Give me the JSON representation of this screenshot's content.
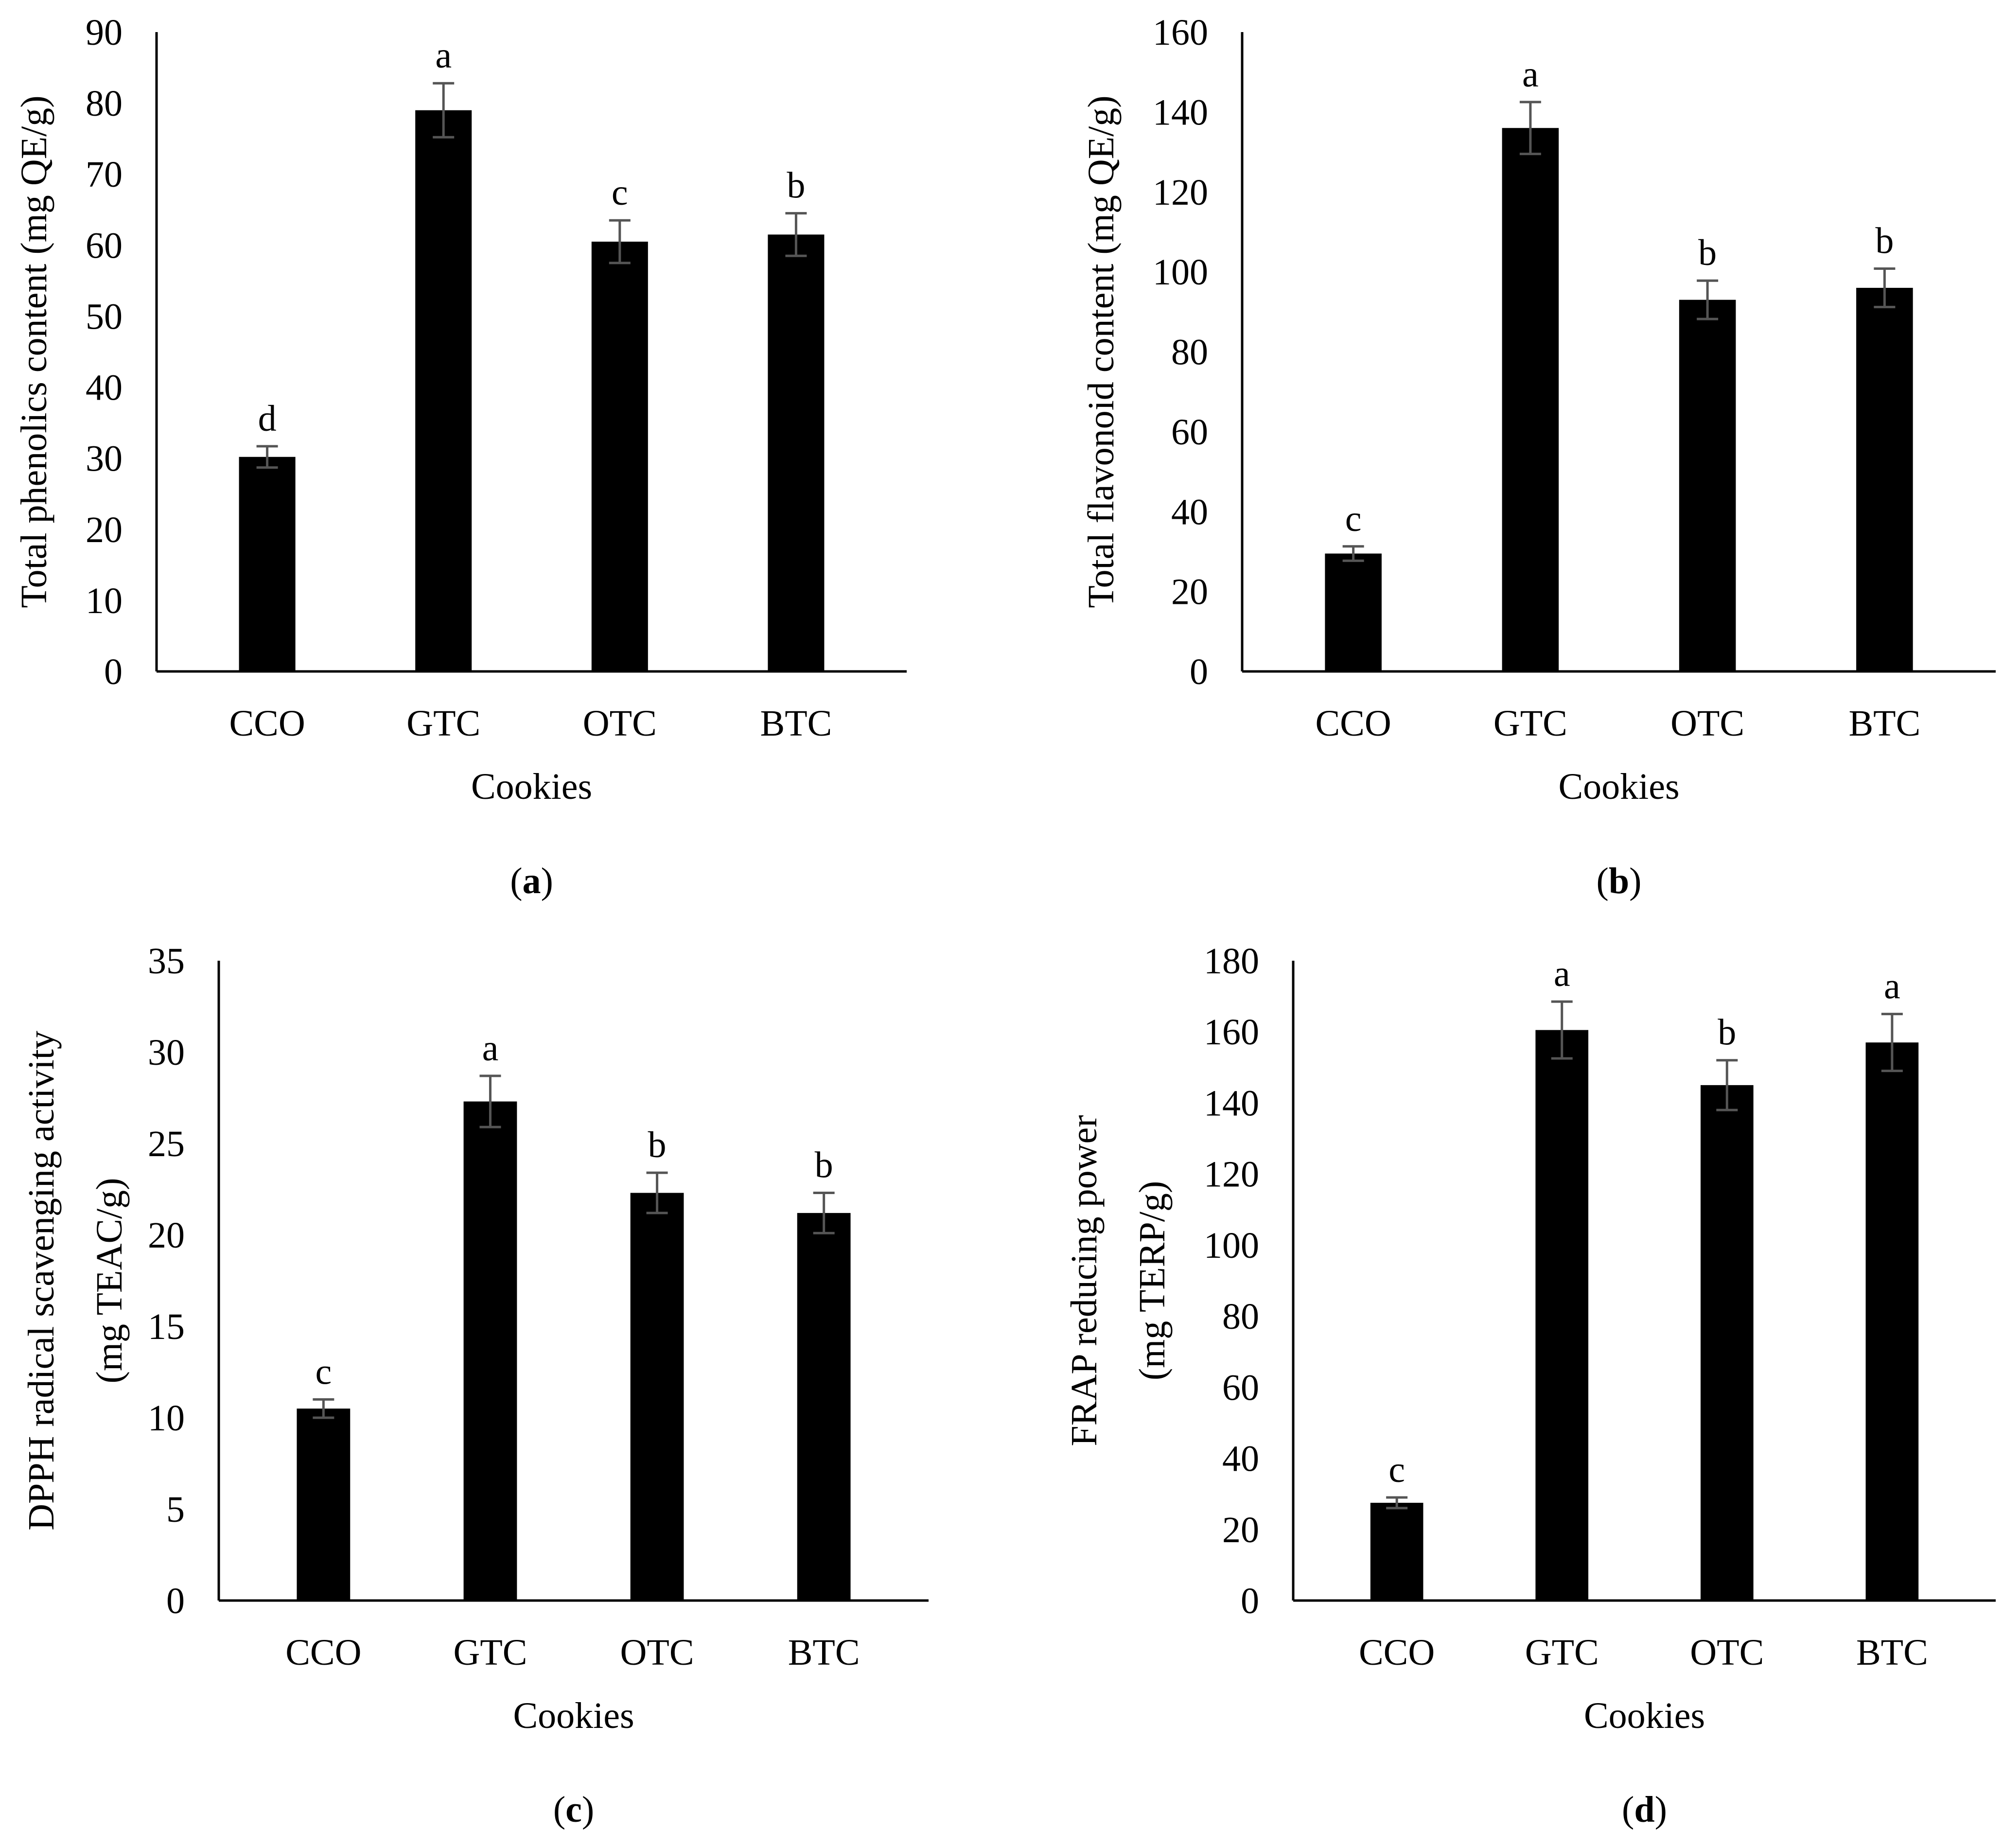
{
  "colors": {
    "bar": "#000000",
    "axis": "#000000",
    "errorbar": "#555555",
    "background": "#ffffff"
  },
  "chart_data": [
    {
      "panel": "(a)",
      "panel_letter": "a",
      "type": "bar",
      "title": "",
      "xlabel": "Cookies",
      "ylabel_lines": [
        "Total phenolics content (mg QE/g)"
      ],
      "categories": [
        "CCO",
        "GTC",
        "OTC",
        "BTC"
      ],
      "values": [
        30.2,
        79.0,
        60.5,
        61.5
      ],
      "errors": [
        1.5,
        3.8,
        3.0,
        3.0
      ],
      "significance": [
        "d",
        "a",
        "c",
        "b"
      ],
      "ylim": [
        0,
        90
      ],
      "yticks": [
        0,
        10,
        20,
        30,
        40,
        50,
        60,
        70,
        80,
        90
      ]
    },
    {
      "panel": "(b)",
      "panel_letter": "b",
      "type": "bar",
      "title": "",
      "xlabel": "Cookies",
      "ylabel_lines": [
        "Total flavonoid content (mg QE/g)"
      ],
      "categories": [
        "CCO",
        "GTC",
        "OTC",
        "BTC"
      ],
      "values": [
        29.5,
        136.0,
        93.0,
        96.0
      ],
      "errors": [
        1.8,
        6.5,
        4.8,
        4.8
      ],
      "significance": [
        "c",
        "a",
        "b",
        "b"
      ],
      "ylim": [
        0,
        160
      ],
      "yticks": [
        0,
        20,
        40,
        60,
        80,
        100,
        120,
        140,
        160
      ]
    },
    {
      "panel": "(c)",
      "panel_letter": "c",
      "type": "bar",
      "title": "",
      "xlabel": "Cookies",
      "ylabel_lines": [
        "DPPH radical scavenging activity",
        "(mg TEAC/g)"
      ],
      "categories": [
        "CCO",
        "GTC",
        "OTC",
        "BTC"
      ],
      "values": [
        10.5,
        27.3,
        22.3,
        21.2
      ],
      "errors": [
        0.5,
        1.4,
        1.1,
        1.1
      ],
      "significance": [
        "c",
        "a",
        "b",
        "b"
      ],
      "ylim": [
        0,
        35
      ],
      "yticks": [
        0,
        5,
        10,
        15,
        20,
        25,
        30,
        35
      ]
    },
    {
      "panel": "(d)",
      "panel_letter": "d",
      "type": "bar",
      "title": "",
      "xlabel": "Cookies",
      "ylabel_lines": [
        "FRAP reducing power",
        "(mg TERP/g)"
      ],
      "categories": [
        "CCO",
        "GTC",
        "OTC",
        "BTC"
      ],
      "values": [
        27.5,
        160.5,
        145.0,
        157.0
      ],
      "errors": [
        1.5,
        8.0,
        7.0,
        8.0
      ],
      "significance": [
        "c",
        "a",
        "b",
        "a"
      ],
      "ylim": [
        0,
        180
      ],
      "yticks": [
        0,
        20,
        40,
        60,
        80,
        100,
        120,
        140,
        160,
        180
      ]
    }
  ]
}
